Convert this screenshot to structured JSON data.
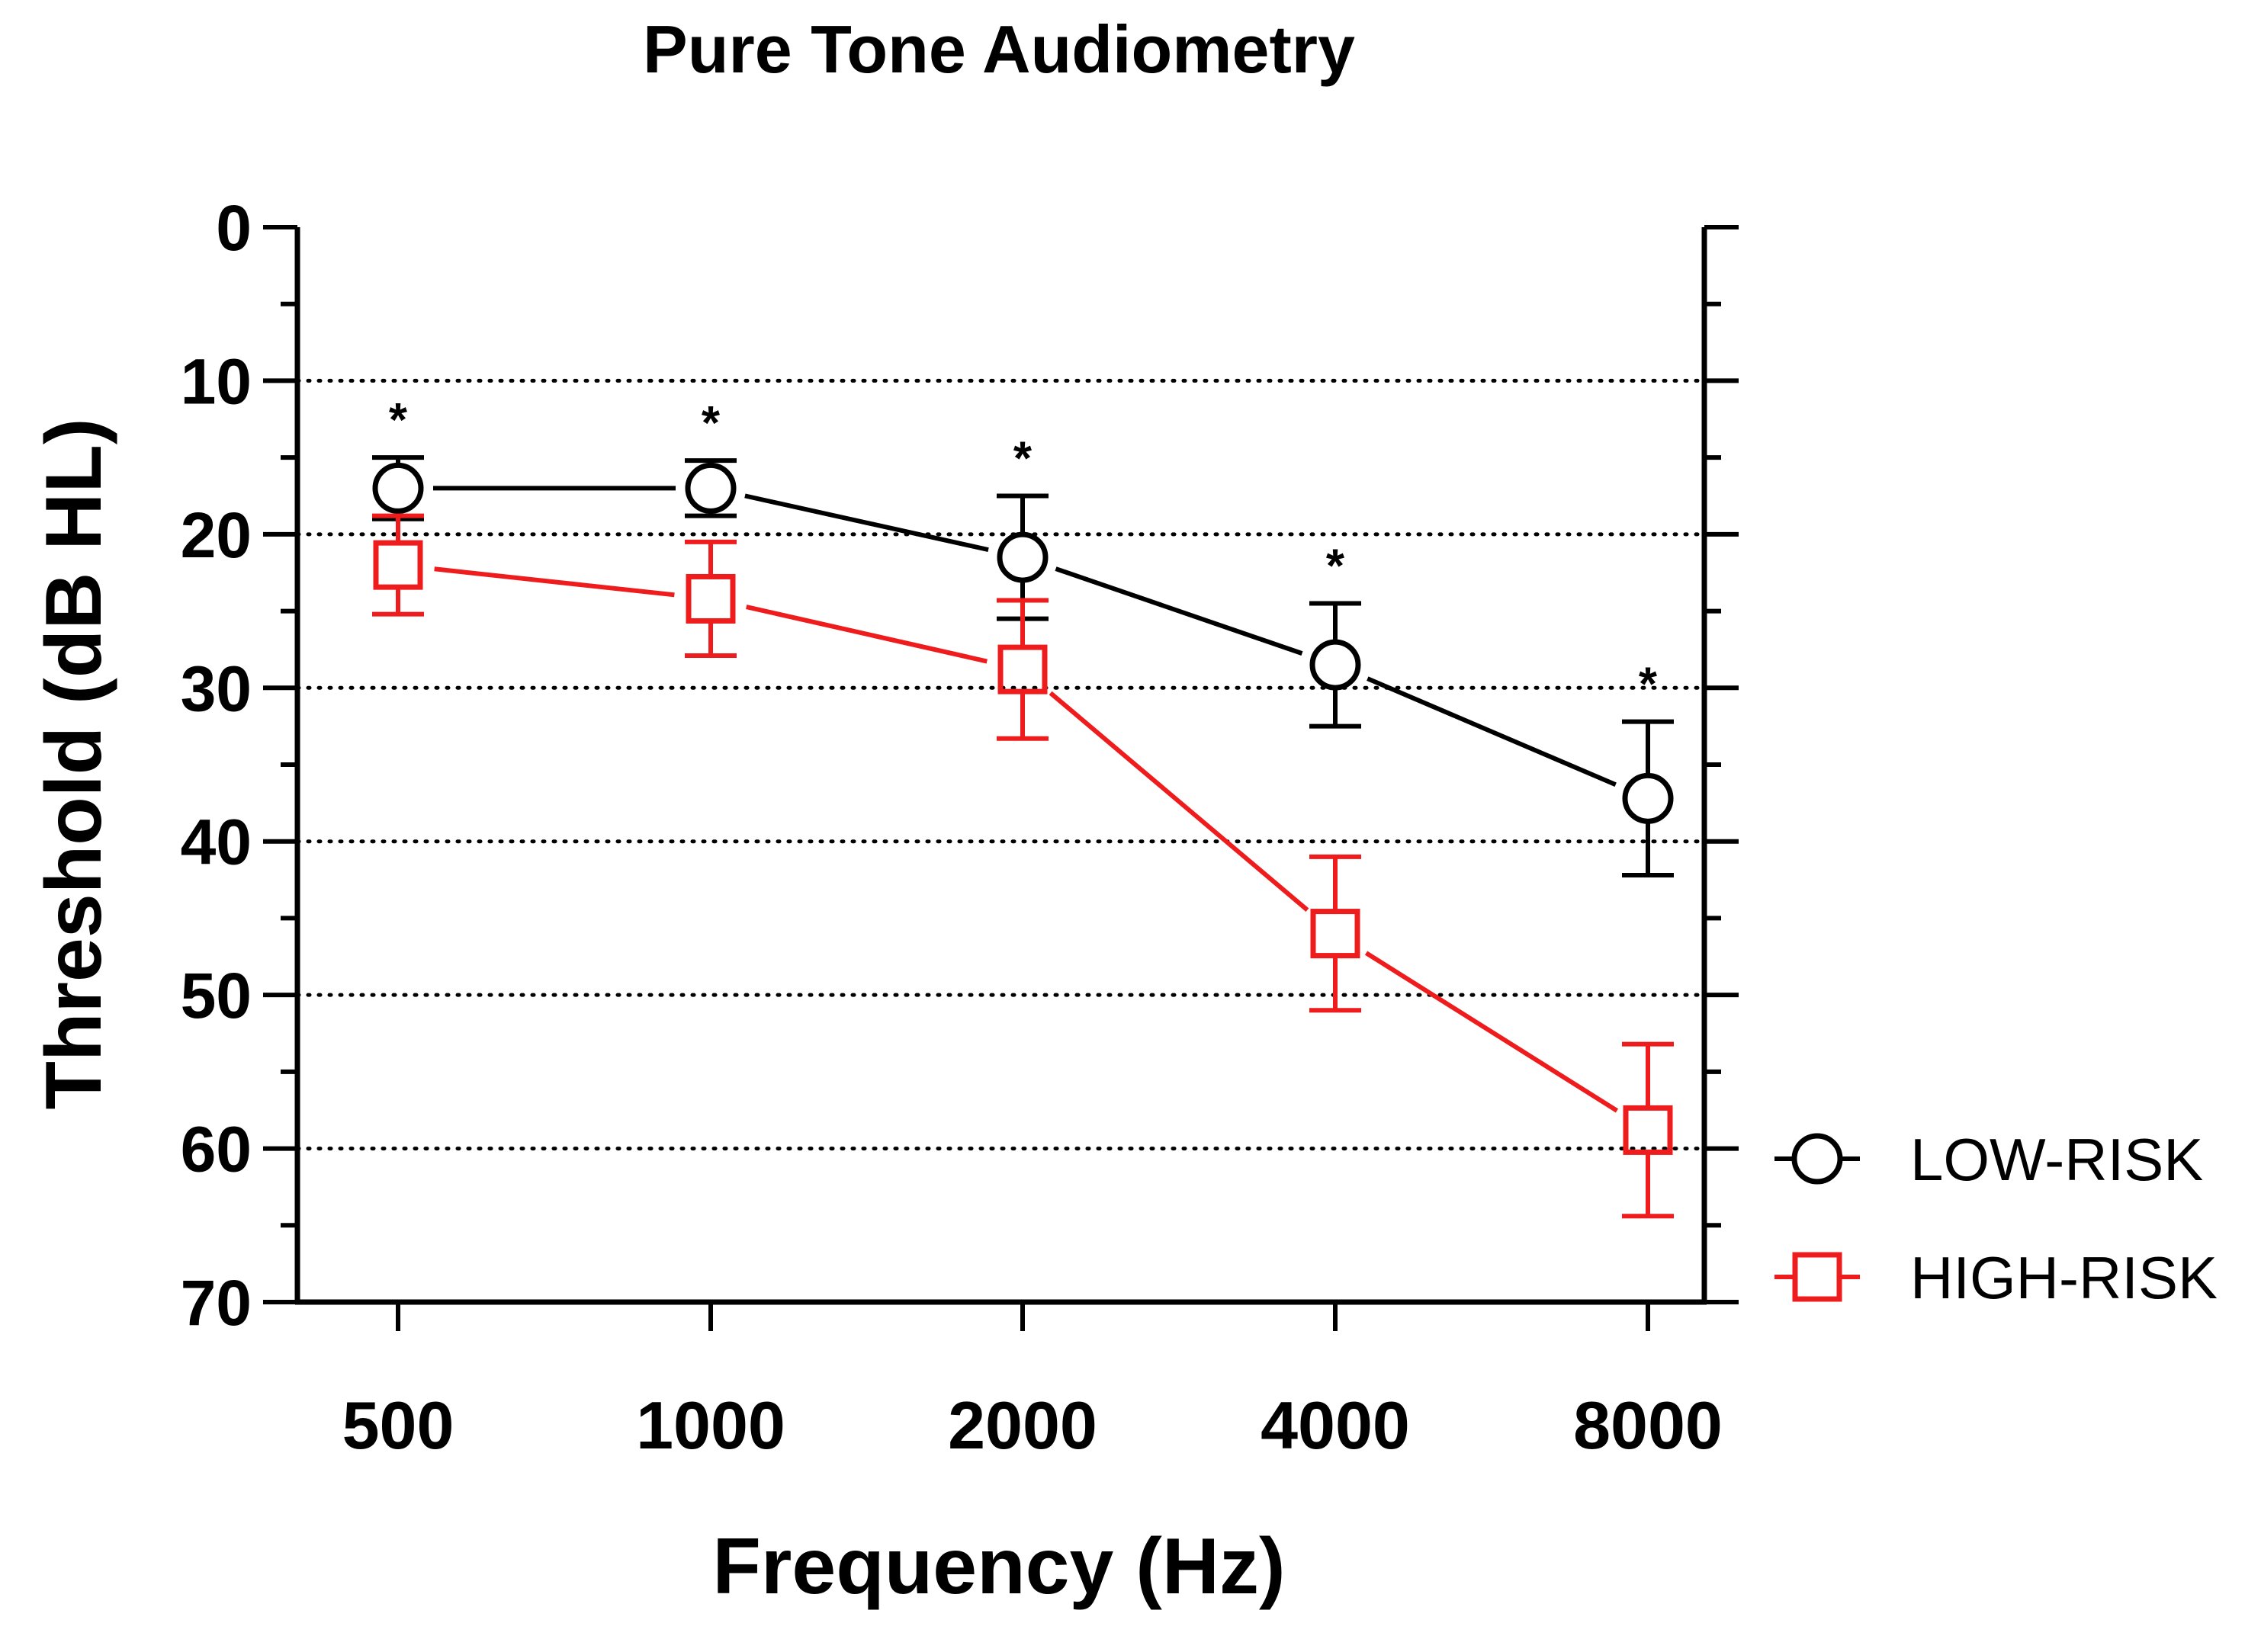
{
  "chart_data": {
    "type": "line",
    "title": "Pure Tone Audiometry",
    "xlabel": "Frequency (Hz)",
    "ylabel": "Threshold (dB HL)",
    "categories": [
      "500",
      "1000",
      "2000",
      "4000",
      "8000"
    ],
    "ylim": [
      0,
      70
    ],
    "y_inverted": true,
    "y_ticks": [
      0,
      10,
      20,
      30,
      40,
      50,
      60,
      70
    ],
    "y_minor_step": 5,
    "gridlines": [
      10,
      20,
      30,
      40,
      50,
      60
    ],
    "grid_style": "dotted",
    "legend_position": "right",
    "significance_marks": [
      "*",
      "*",
      "*",
      "*",
      "*"
    ],
    "series": [
      {
        "name": "LOW-RISK",
        "marker": "circle",
        "color": "#000000",
        "values": [
          17.0,
          17.0,
          21.5,
          28.5,
          37.2
        ],
        "error": [
          2.0,
          1.8,
          4.0,
          4.0,
          5.0
        ]
      },
      {
        "name": "HIGH-RISK",
        "marker": "square",
        "color": "#ee1c1c",
        "values": [
          22.0,
          24.2,
          28.8,
          46.0,
          58.8
        ],
        "error": [
          3.2,
          3.7,
          4.5,
          5.0,
          5.6
        ]
      }
    ]
  }
}
